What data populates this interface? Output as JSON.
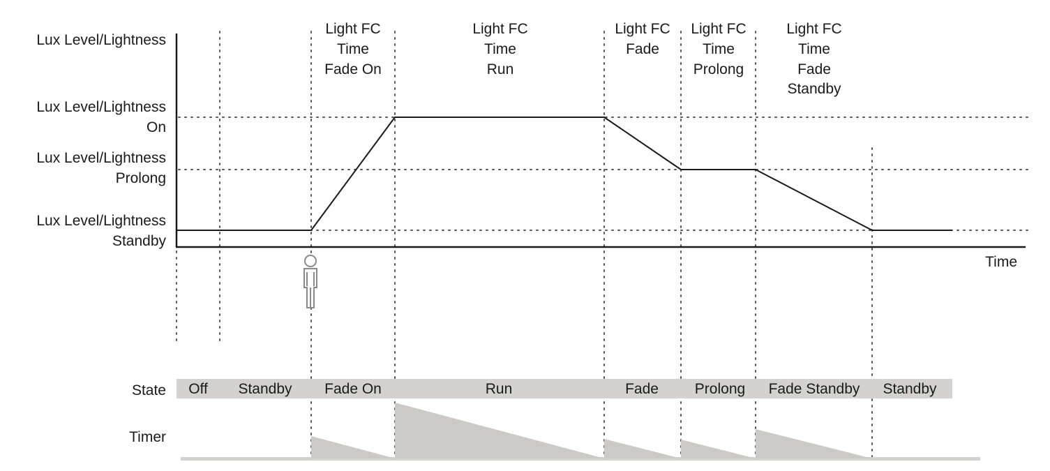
{
  "axis": {
    "y_label": "Lux Level/Lightness",
    "x_label": "Time"
  },
  "levels": [
    {
      "id": "on",
      "line1": "Lux Level/Lightness",
      "line2": "On"
    },
    {
      "id": "prolong",
      "line1": "Lux Level/Lightness",
      "line2": "Prolong"
    },
    {
      "id": "standby",
      "line1": "Lux Level/Lightness",
      "line2": "Standby"
    }
  ],
  "phase_headers": [
    {
      "id": "fade-on",
      "lines": [
        "Light FC",
        "Time",
        "Fade On"
      ]
    },
    {
      "id": "run",
      "lines": [
        "Light FC",
        "Time",
        "Run"
      ]
    },
    {
      "id": "fade",
      "lines": [
        "Light FC",
        "Fade"
      ]
    },
    {
      "id": "prolong",
      "lines": [
        "Light FC",
        "Time",
        "Prolong"
      ]
    },
    {
      "id": "fade-standby",
      "lines": [
        "Light FC",
        "Time",
        "Fade",
        "Standby"
      ]
    }
  ],
  "state_row": {
    "label": "State",
    "states": [
      "Off",
      "Standby",
      "Fade On",
      "Run",
      "Fade",
      "Prolong",
      "Fade Standby",
      "Standby"
    ]
  },
  "timer_row": {
    "label": "Timer"
  },
  "icons": {
    "presence": "person-icon"
  },
  "colors": {
    "line": "#1a1a1a",
    "band": "#d3d2ce"
  }
}
